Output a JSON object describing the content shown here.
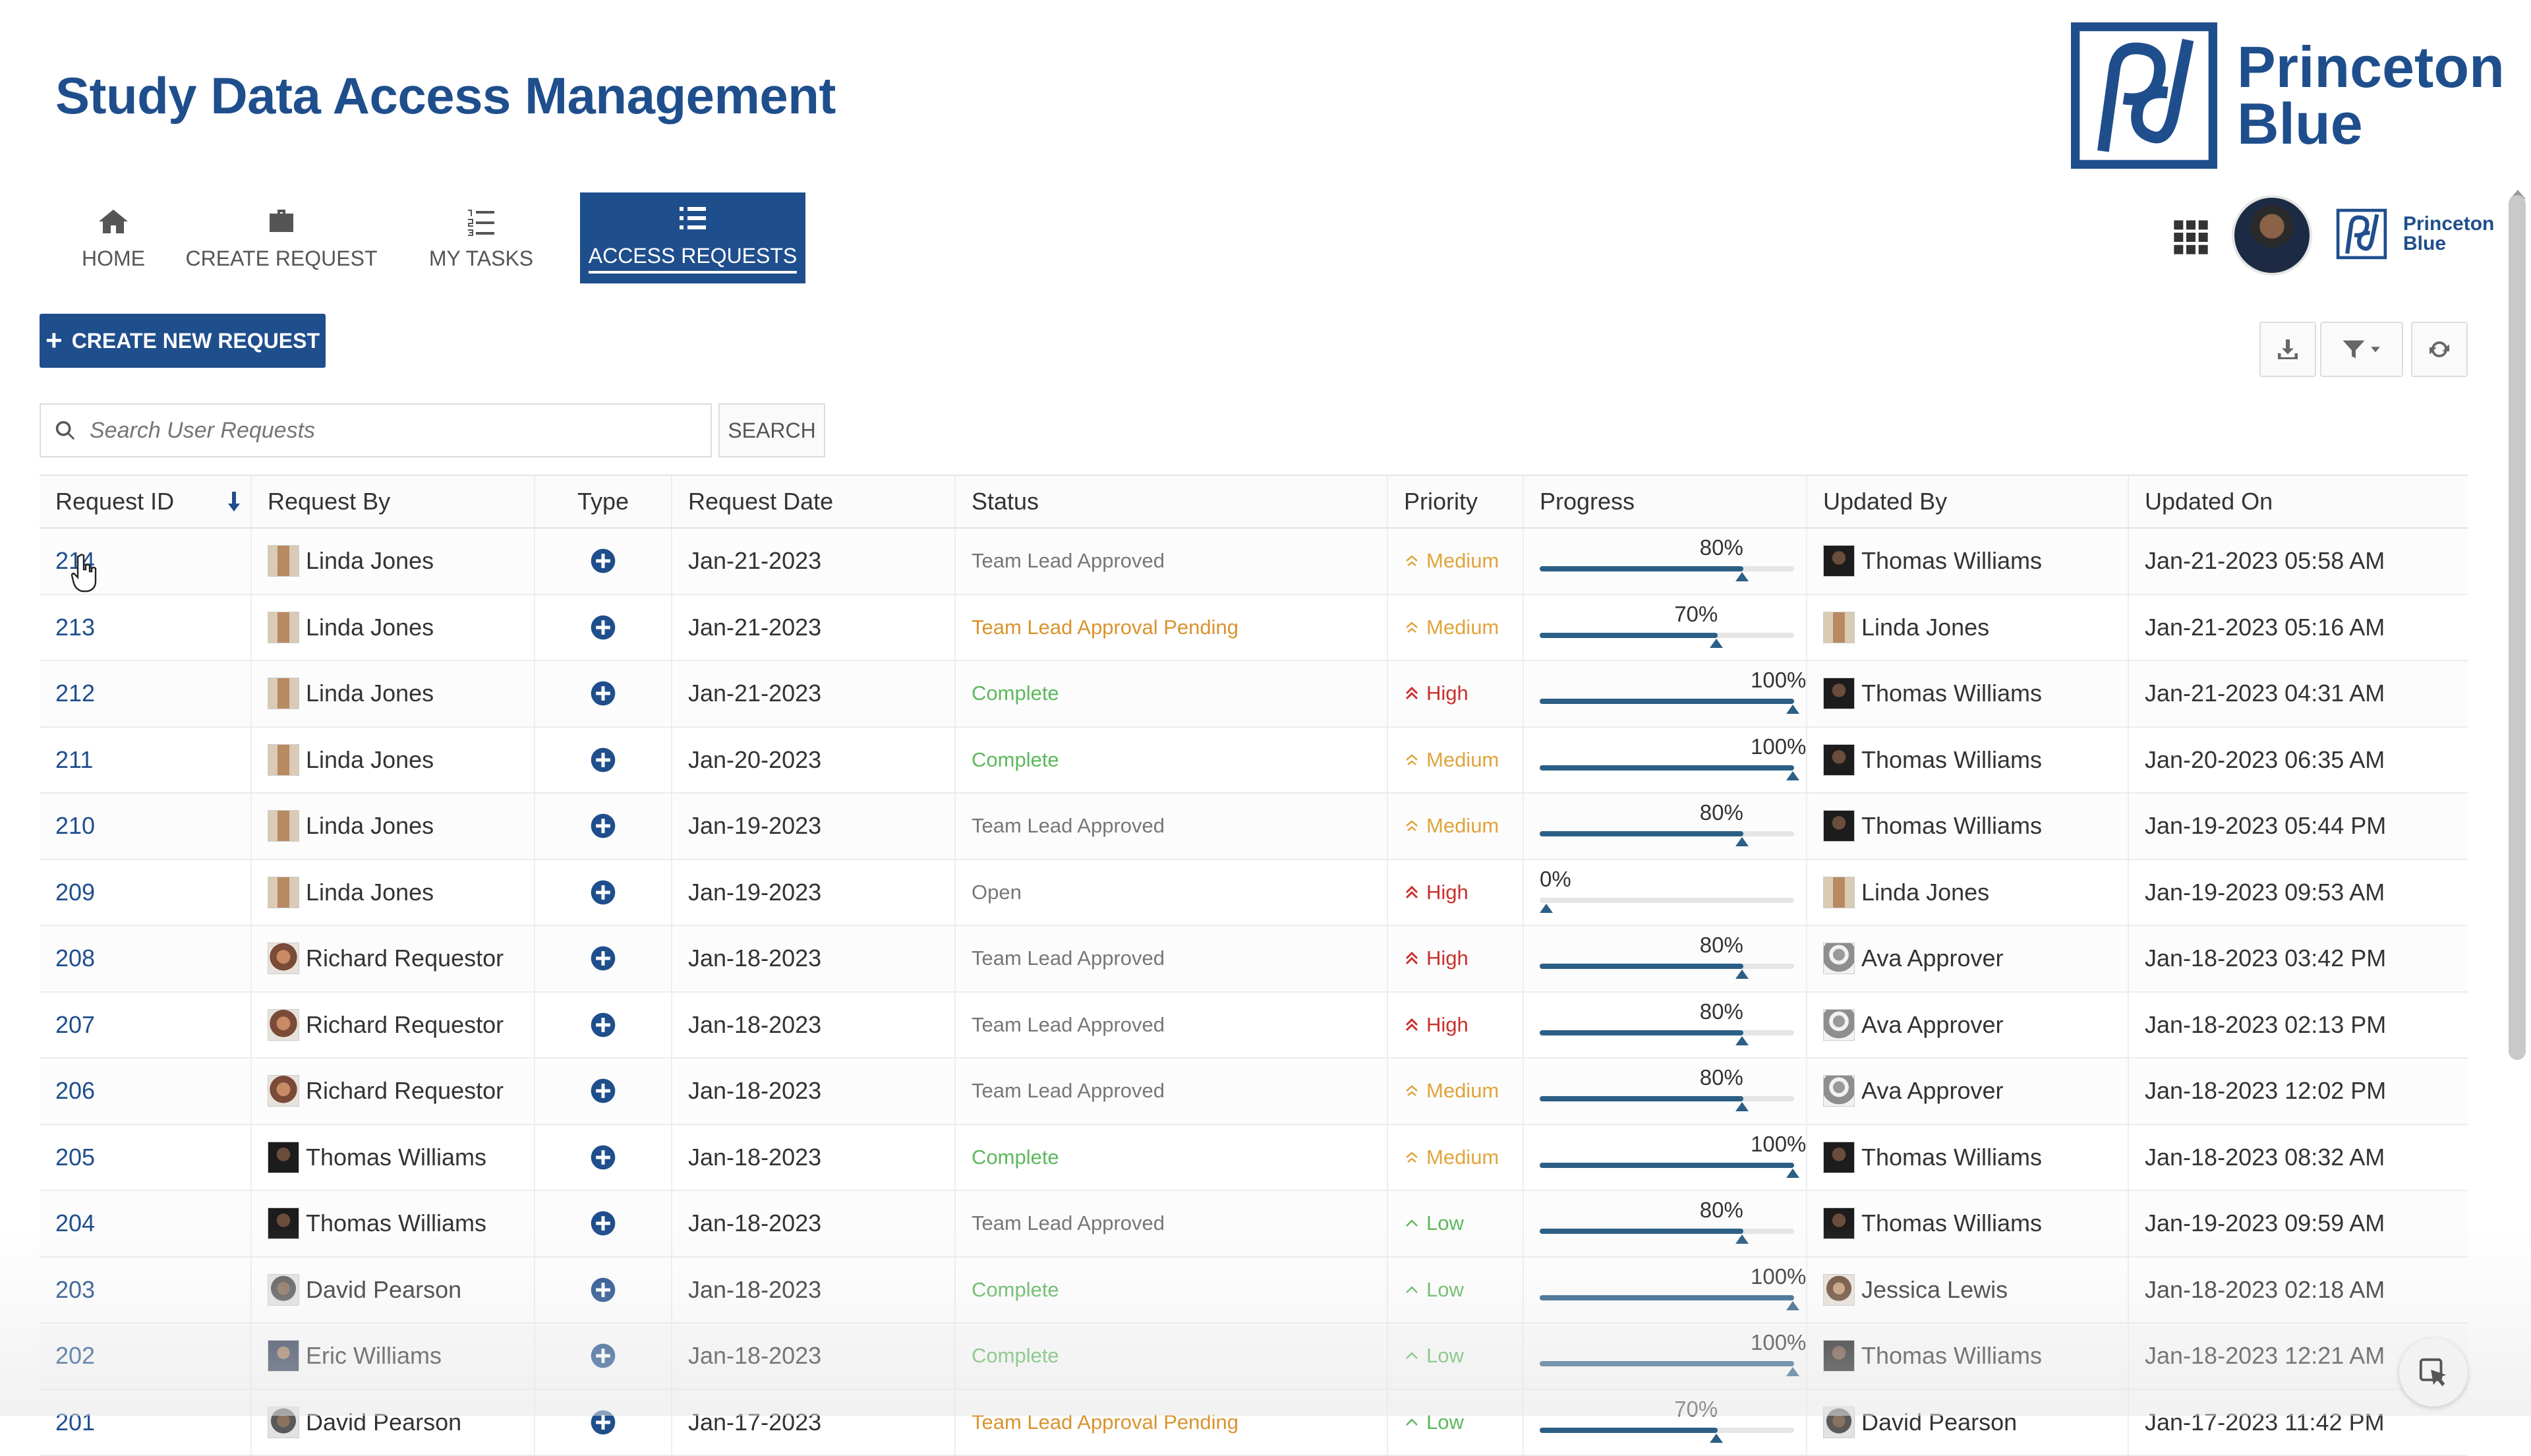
{
  "app": {
    "title": "Study Data Access Management",
    "brand_line1": "Princeton",
    "brand_line2": "Blue"
  },
  "nav": {
    "home": "HOME",
    "create_request": "CREATE REQUEST",
    "my_tasks": "MY TASKS",
    "access_requests": "ACCESS REQUESTS",
    "active": "access_requests"
  },
  "toolbar": {
    "create_new_request": "CREATE NEW REQUEST",
    "search_placeholder": "Search User Requests",
    "search_button": "SEARCH",
    "download_icon": "download-icon",
    "filter_icon": "filter-icon",
    "refresh_icon": "refresh-icon"
  },
  "colors": {
    "brand": "#1f4e8c",
    "status_open": "#777777",
    "status_approved": "#777777",
    "status_pending": "#d9932e",
    "status_complete": "#5cb85c",
    "priority_high": "#c9302c",
    "priority_medium": "#e0a43b",
    "priority_low": "#5cb85c",
    "progress": "#2c5f85"
  },
  "table": {
    "columns": [
      "Request ID",
      "Request By",
      "Type",
      "Request Date",
      "Status",
      "Priority",
      "Progress",
      "Updated By",
      "Updated On"
    ],
    "rows": [
      {
        "id": "214",
        "by": "Linda Jones",
        "date": "Jan-21-2023",
        "status": "Team Lead Approved",
        "priority": "Medium",
        "progress": 80,
        "progress_label": "80%",
        "updated_by": "Thomas Williams",
        "updated_on": "Jan-21-2023 05:58 AM"
      },
      {
        "id": "213",
        "by": "Linda Jones",
        "date": "Jan-21-2023",
        "status": "Team Lead Approval Pending",
        "priority": "Medium",
        "progress": 70,
        "progress_label": "70%",
        "updated_by": "Linda Jones",
        "updated_on": "Jan-21-2023 05:16 AM"
      },
      {
        "id": "212",
        "by": "Linda Jones",
        "date": "Jan-21-2023",
        "status": "Complete",
        "priority": "High",
        "progress": 100,
        "progress_label": "100%",
        "updated_by": "Thomas Williams",
        "updated_on": "Jan-21-2023 04:31 AM"
      },
      {
        "id": "211",
        "by": "Linda Jones",
        "date": "Jan-20-2023",
        "status": "Complete",
        "priority": "Medium",
        "progress": 100,
        "progress_label": "100%",
        "updated_by": "Thomas Williams",
        "updated_on": "Jan-20-2023 06:35 AM"
      },
      {
        "id": "210",
        "by": "Linda Jones",
        "date": "Jan-19-2023",
        "status": "Team Lead Approved",
        "priority": "Medium",
        "progress": 80,
        "progress_label": "80%",
        "updated_by": "Thomas Williams",
        "updated_on": "Jan-19-2023 05:44 PM"
      },
      {
        "id": "209",
        "by": "Linda Jones",
        "date": "Jan-19-2023",
        "status": "Open",
        "priority": "High",
        "progress": 0,
        "progress_label": "0%",
        "updated_by": "Linda Jones",
        "updated_on": "Jan-19-2023 09:53 AM"
      },
      {
        "id": "208",
        "by": "Richard Requestor",
        "date": "Jan-18-2023",
        "status": "Team Lead Approved",
        "priority": "High",
        "progress": 80,
        "progress_label": "80%",
        "updated_by": "Ava Approver",
        "updated_on": "Jan-18-2023 03:42 PM"
      },
      {
        "id": "207",
        "by": "Richard Requestor",
        "date": "Jan-18-2023",
        "status": "Team Lead Approved",
        "priority": "High",
        "progress": 80,
        "progress_label": "80%",
        "updated_by": "Ava Approver",
        "updated_on": "Jan-18-2023 02:13 PM"
      },
      {
        "id": "206",
        "by": "Richard Requestor",
        "date": "Jan-18-2023",
        "status": "Team Lead Approved",
        "priority": "Medium",
        "progress": 80,
        "progress_label": "80%",
        "updated_by": "Ava Approver",
        "updated_on": "Jan-18-2023 12:02 PM"
      },
      {
        "id": "205",
        "by": "Thomas Williams",
        "date": "Jan-18-2023",
        "status": "Complete",
        "priority": "Medium",
        "progress": 100,
        "progress_label": "100%",
        "updated_by": "Thomas Williams",
        "updated_on": "Jan-18-2023 08:32 AM"
      },
      {
        "id": "204",
        "by": "Thomas Williams",
        "date": "Jan-18-2023",
        "status": "Team Lead Approved",
        "priority": "Low",
        "progress": 80,
        "progress_label": "80%",
        "updated_by": "Thomas Williams",
        "updated_on": "Jan-19-2023 09:59 AM"
      },
      {
        "id": "203",
        "by": "David Pearson",
        "date": "Jan-18-2023",
        "status": "Complete",
        "priority": "Low",
        "progress": 100,
        "progress_label": "100%",
        "updated_by": "Jessica Lewis",
        "updated_on": "Jan-18-2023 02:18 AM"
      },
      {
        "id": "202",
        "by": "Eric Williams",
        "date": "Jan-18-2023",
        "status": "Complete",
        "priority": "Low",
        "progress": 100,
        "progress_label": "100%",
        "updated_by": "Thomas Williams",
        "updated_on": "Jan-18-2023 12:21 AM"
      },
      {
        "id": "201",
        "by": "David Pearson",
        "date": "Jan-17-2023",
        "status": "Team Lead Approval Pending",
        "priority": "Low",
        "progress": 70,
        "progress_label": "70%",
        "updated_by": "David Pearson",
        "updated_on": "Jan-17-2023 11:42 PM"
      }
    ]
  }
}
